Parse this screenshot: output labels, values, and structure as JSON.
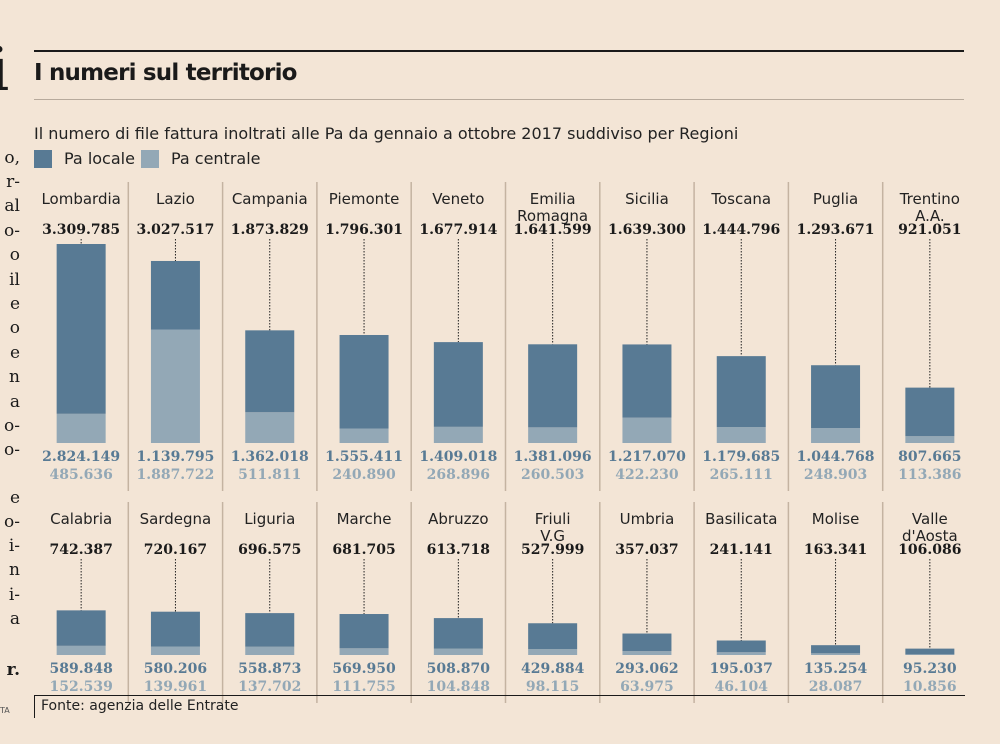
{
  "article_fragment": {
    "lines": [
      "o,",
      "r-",
      "al",
      "o-",
      "o",
      "il",
      "e",
      "o",
      "e",
      "n",
      "a",
      "o-",
      "o-",
      "e",
      "o-",
      "i-",
      "n",
      "i-",
      "a",
      "r."
    ],
    "credit": "TA"
  },
  "header": {
    "title": "I numeri sul territorio",
    "subtitle": "Il numero di file fattura inoltrati alle Pa da gennaio a ottobre 2017 suddiviso per Regioni"
  },
  "colors": {
    "locale": "#587a94",
    "centrale": "#93a8b6",
    "background": "#f3e5d6",
    "total_text": "#1a1a1a",
    "locale_text": "#587a94",
    "centrale_text": "#93a8b6"
  },
  "footer": {
    "source": "Fonte: agenzia delle Entrate"
  },
  "chart_data": {
    "type": "bar",
    "stacked": true,
    "title": "I numeri sul territorio",
    "subtitle": "Il numero di file fattura inoltrati alle Pa da gennaio a ottobre 2017 suddiviso per Regioni",
    "xlabel": "",
    "ylabel": "",
    "legend": {
      "placement": "top-left",
      "entries": [
        "Pa locale",
        "Pa centrale"
      ]
    },
    "series": [
      {
        "name": "Pa locale",
        "values": [
          2824149,
          1139795,
          1362018,
          1555411,
          1409018,
          1381096,
          1217070,
          1179685,
          1044768,
          807665,
          589848,
          580206,
          558873,
          569950,
          508870,
          429884,
          293062,
          195037,
          135254,
          95230
        ]
      },
      {
        "name": "Pa centrale",
        "values": [
          485636,
          1887722,
          511811,
          240890,
          268896,
          260503,
          422230,
          265111,
          248903,
          113386,
          152539,
          139961,
          137702,
          111755,
          104848,
          98115,
          63975,
          46104,
          28087,
          10856
        ]
      }
    ],
    "categories": [
      "Lombardia",
      "Lazio",
      "Campania",
      "Piemonte",
      "Veneto",
      "Emilia Romagna",
      "Sicilia",
      "Toscana",
      "Puglia",
      "Trentino A.A.",
      "Calabria",
      "Sardegna",
      "Liguria",
      "Marche",
      "Abruzzo",
      "Friuli V.G",
      "Umbria",
      "Basilicata",
      "Molise",
      "Valle d'Aosta"
    ],
    "regions": [
      {
        "name": [
          "Lombardia"
        ],
        "total": "3.309.785",
        "locale": "2.824.149",
        "centrale": "485.636"
      },
      {
        "name": [
          "Lazio"
        ],
        "total": "3.027.517",
        "locale": "1.139.795",
        "centrale": "1.887.722"
      },
      {
        "name": [
          "Campania"
        ],
        "total": "1.873.829",
        "locale": "1.362.018",
        "centrale": "511.811"
      },
      {
        "name": [
          "Piemonte"
        ],
        "total": "1.796.301",
        "locale": "1.555.411",
        "centrale": "240.890"
      },
      {
        "name": [
          "Veneto"
        ],
        "total": "1.677.914",
        "locale": "1.409.018",
        "centrale": "268.896"
      },
      {
        "name": [
          "Emilia",
          "Romagna"
        ],
        "total": "1.641.599",
        "locale": "1.381.096",
        "centrale": "260.503"
      },
      {
        "name": [
          "Sicilia"
        ],
        "total": "1.639.300",
        "locale": "1.217.070",
        "centrale": "422.230"
      },
      {
        "name": [
          "Toscana"
        ],
        "total": "1.444.796",
        "locale": "1.179.685",
        "centrale": "265.111"
      },
      {
        "name": [
          "Puglia"
        ],
        "total": "1.293.671",
        "locale": "1.044.768",
        "centrale": "248.903"
      },
      {
        "name": [
          "Trentino",
          "A.A."
        ],
        "total": "921.051",
        "locale": "807.665",
        "centrale": "113.386"
      },
      {
        "name": [
          "Calabria"
        ],
        "total": "742.387",
        "locale": "589.848",
        "centrale": "152.539"
      },
      {
        "name": [
          "Sardegna"
        ],
        "total": "720.167",
        "locale": "580.206",
        "centrale": "139.961"
      },
      {
        "name": [
          "Liguria"
        ],
        "total": "696.575",
        "locale": "558.873",
        "centrale": "137.702"
      },
      {
        "name": [
          "Marche"
        ],
        "total": "681.705",
        "locale": "569.950",
        "centrale": "111.755"
      },
      {
        "name": [
          "Abruzzo"
        ],
        "total": "613.718",
        "locale": "508.870",
        "centrale": "104.848"
      },
      {
        "name": [
          "Friuli",
          "V.G"
        ],
        "total": "527.999",
        "locale": "429.884",
        "centrale": "98.115"
      },
      {
        "name": [
          "Umbria"
        ],
        "total": "357.037",
        "locale": "293.062",
        "centrale": "63.975"
      },
      {
        "name": [
          "Basilicata"
        ],
        "total": "241.141",
        "locale": "195.037",
        "centrale": "46.104"
      },
      {
        "name": [
          "Molise"
        ],
        "total": "163.341",
        "locale": "135.254",
        "centrale": "28.087"
      },
      {
        "name": [
          "Valle",
          "d'Aosta"
        ],
        "total": "106.086",
        "locale": "95.230",
        "centrale": "10.856"
      }
    ],
    "totals": [
      3309785,
      3027517,
      1873829,
      1796301,
      1677914,
      1641599,
      1639300,
      1444796,
      1293671,
      921051,
      742387,
      720167,
      696575,
      681705,
      613718,
      527999,
      357037,
      241141,
      163341,
      106086
    ],
    "grid": false,
    "layout_rows": 2,
    "per_row": 10
  }
}
